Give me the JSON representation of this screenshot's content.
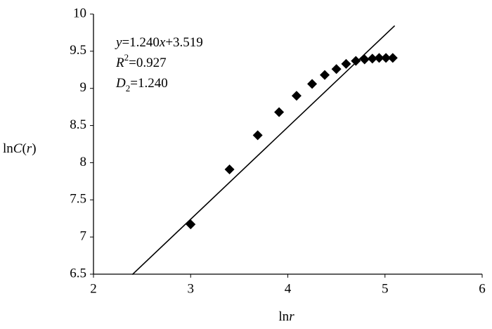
{
  "chart_data": {
    "type": "scatter",
    "x_label": [
      "ln",
      "r"
    ],
    "y_label": [
      "ln",
      "C",
      "(",
      "r",
      ")"
    ],
    "annotations": [
      [
        "y",
        "=1.240",
        "x",
        "+3.519"
      ],
      [
        "R",
        "2",
        "=0.927"
      ],
      [
        "D",
        "2",
        "=1.240"
      ]
    ],
    "x": [
      3.0,
      3.4,
      3.69,
      3.91,
      4.09,
      4.25,
      4.38,
      4.5,
      4.6,
      4.7,
      4.79,
      4.87,
      4.94,
      5.01,
      5.08
    ],
    "values": [
      7.17,
      7.91,
      8.37,
      8.68,
      8.9,
      9.06,
      9.18,
      9.26,
      9.33,
      9.37,
      9.39,
      9.4,
      9.41,
      9.41,
      9.41
    ],
    "color": "#000000",
    "trendline": {
      "slope": 1.24,
      "intercept": 3.519,
      "x": [
        2.4,
        5.1
      ]
    },
    "xlim": [
      2,
      6
    ],
    "xticks": [
      2,
      3,
      4,
      5,
      6
    ],
    "ylim": [
      6.5,
      10
    ],
    "yticks": [
      6.5,
      7,
      7.5,
      8,
      8.5,
      9,
      9.5,
      10
    ]
  }
}
